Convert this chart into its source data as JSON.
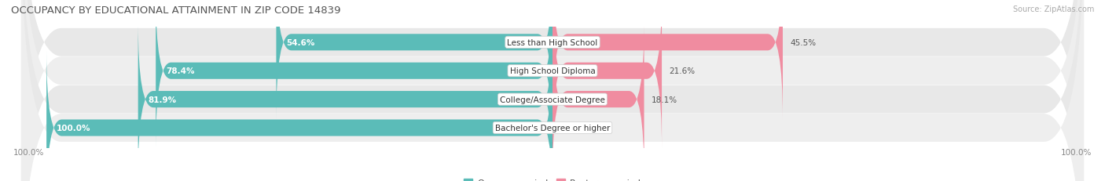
{
  "title": "OCCUPANCY BY EDUCATIONAL ATTAINMENT IN ZIP CODE 14839",
  "source": "Source: ZipAtlas.com",
  "categories": [
    "Less than High School",
    "High School Diploma",
    "College/Associate Degree",
    "Bachelor's Degree or higher"
  ],
  "owner_pct": [
    54.6,
    78.4,
    81.9,
    100.0
  ],
  "renter_pct": [
    45.5,
    21.6,
    18.1,
    0.0
  ],
  "owner_color": "#5bbcb8",
  "renter_color": "#f08ca0",
  "row_bg_color": "#e8e8e8",
  "row_bg_light": "#f2f2f2",
  "title_fontsize": 9.5,
  "source_fontsize": 7,
  "label_fontsize": 7.5,
  "tick_fontsize": 7.5,
  "legend_fontsize": 8,
  "bar_height": 0.58,
  "x_left_label": "100.0%",
  "x_right_label": "100.0%"
}
